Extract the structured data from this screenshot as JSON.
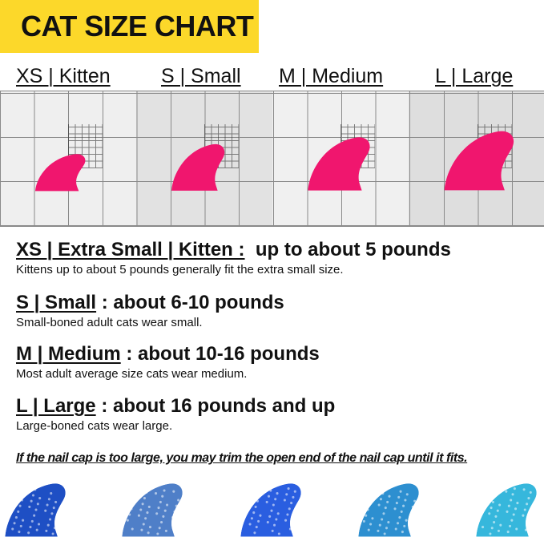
{
  "banner": {
    "title": "CAT SIZE CHART",
    "color": "#fcd82a"
  },
  "sizes": [
    {
      "label": "XS | Kitten",
      "heading_size": "XS | Extra Small | Kitten :",
      "heading_weight": "up to about 5 pounds",
      "description": "Kittens up to about 5 pounds generally fit the extra small size."
    },
    {
      "label": "S | Small",
      "heading_size": "S | Small",
      "heading_weight": ": about 6-10 pounds",
      "description": "Small-boned adult cats wear small."
    },
    {
      "label": "M | Medium",
      "heading_size": "M | Medium",
      "heading_weight": ": about 10-16 pounds",
      "description": "Most adult average size cats wear medium."
    },
    {
      "label": "L | Large",
      "heading_size": "L | Large",
      "heading_weight": ": about 16 pounds and up",
      "description": "Large-boned cats wear large."
    }
  ],
  "note": "If the nail cap is too large, you may trim the open end of the nail cap until it fits.",
  "cap_pink": "#f0166e",
  "glitter_caps": [
    "#1e4fc4",
    "#4f7fc8",
    "#2a5ee0",
    "#2d8fd0",
    "#36b7dc"
  ]
}
